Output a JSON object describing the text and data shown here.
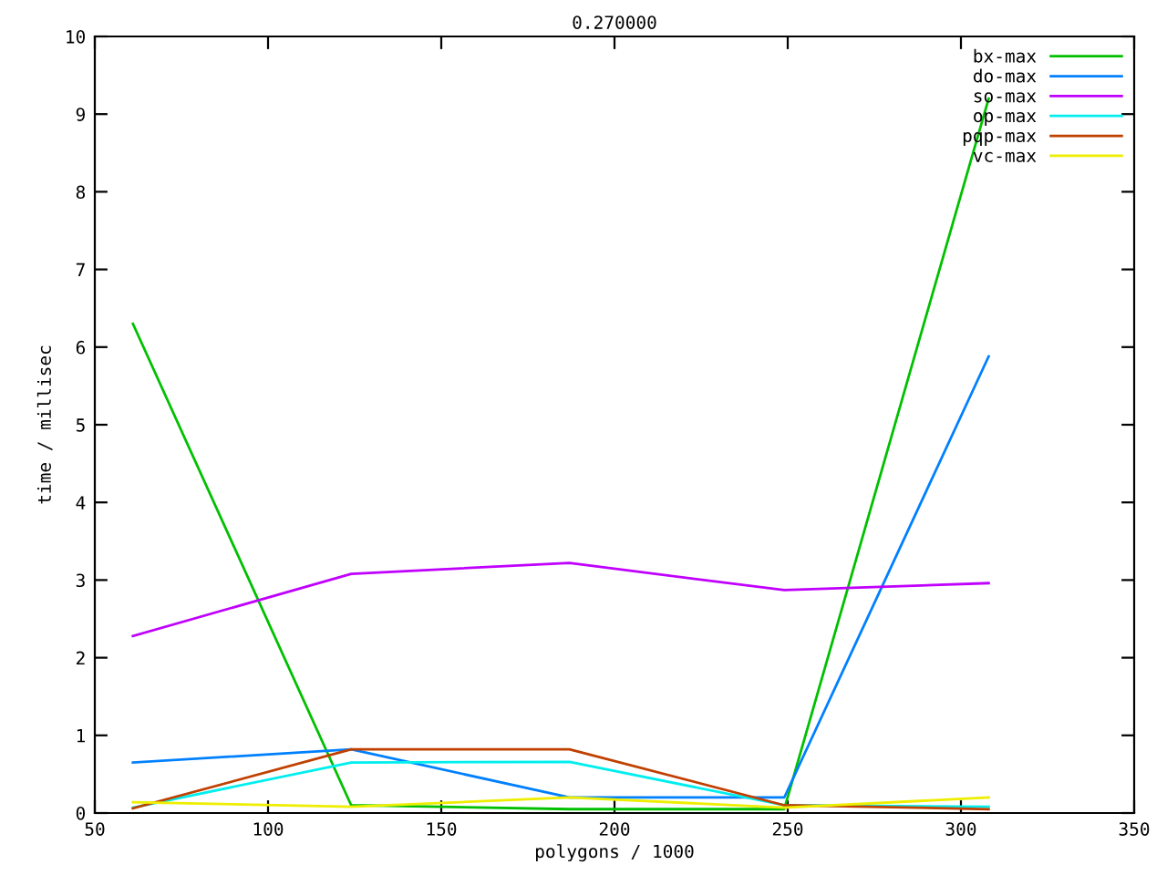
{
  "chart_data": {
    "type": "line",
    "title": "0.270000",
    "xlabel": "polygons / 1000",
    "ylabel": "time / millisec",
    "x": [
      61,
      124,
      187,
      249,
      308
    ],
    "series": [
      {
        "name": "bx-max",
        "color": "#00c000",
        "values": [
          6.3,
          0.1,
          0.05,
          0.05,
          9.2
        ]
      },
      {
        "name": "do-max",
        "color": "#0080ff",
        "values": [
          0.65,
          0.82,
          0.2,
          0.2,
          5.88
        ]
      },
      {
        "name": "so-max",
        "color": "#c000ff",
        "values": [
          2.28,
          3.08,
          3.22,
          2.87,
          2.96
        ]
      },
      {
        "name": "op-max",
        "color": "#00eeee",
        "values": [
          0.07,
          0.65,
          0.66,
          0.1,
          0.08
        ]
      },
      {
        "name": "pqp-max",
        "color": "#c04000",
        "values": [
          0.06,
          0.82,
          0.82,
          0.1,
          0.05
        ]
      },
      {
        "name": "vc-max",
        "color": "#eeee00",
        "values": [
          0.14,
          0.08,
          0.2,
          0.07,
          0.2
        ]
      }
    ],
    "xlim": [
      50,
      350
    ],
    "xticks": [
      50,
      100,
      150,
      200,
      250,
      300,
      350
    ],
    "ylim": [
      0,
      10
    ],
    "yticks": [
      0,
      1,
      2,
      3,
      4,
      5,
      6,
      7,
      8,
      9,
      10
    ],
    "grid": false,
    "legend": "top right",
    "marker": "none",
    "line_style": "solid"
  }
}
